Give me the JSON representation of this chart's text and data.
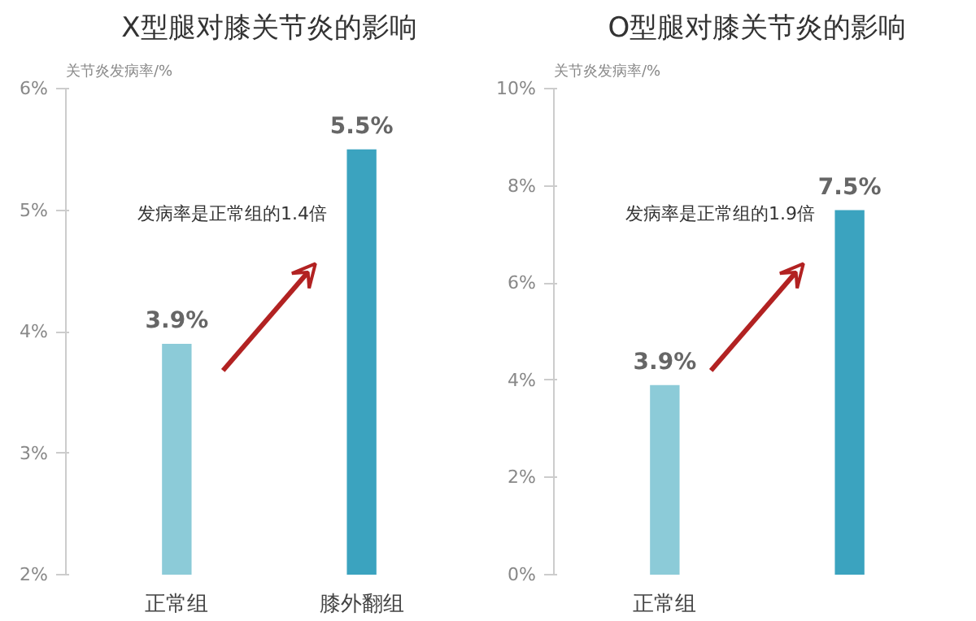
{
  "chart_data": [
    {
      "type": "bar",
      "title": "X型腿对膝关节炎的影响",
      "ylabel": "关节炎发病率/%",
      "categories": [
        "正常组",
        "膝外翻组"
      ],
      "values": [
        3.9,
        5.5
      ],
      "colors": [
        "#8ccbd8",
        "#3ba3bf"
      ],
      "value_labels": [
        "3.9%",
        "5.5%"
      ],
      "ylim": [
        2,
        6
      ],
      "yticks": [
        {
          "value": 2,
          "label": "2%"
        },
        {
          "value": 3,
          "label": "3%"
        },
        {
          "value": 4,
          "label": "4%"
        },
        {
          "value": 5,
          "label": "5%"
        },
        {
          "value": 6,
          "label": "6%"
        }
      ],
      "annotations": [
        "发病率是正常组的1.4倍"
      ]
    },
    {
      "type": "bar",
      "title": "O型腿对膝关节炎的影响",
      "ylabel": "关节炎发病率/%",
      "categories": [
        "正常组",
        null
      ],
      "values": [
        3.9,
        7.5
      ],
      "colors": [
        "#8ccbd8",
        "#3ba3bf"
      ],
      "value_labels": [
        "3.9%",
        "7.5%"
      ],
      "ylim": [
        0,
        10
      ],
      "yticks": [
        {
          "value": 0,
          "label": "0%"
        },
        {
          "value": 2,
          "label": "2%"
        },
        {
          "value": 4,
          "label": "4%"
        },
        {
          "value": 6,
          "label": "6%"
        },
        {
          "value": 8,
          "label": "8%"
        },
        {
          "value": 10,
          "label": "10%"
        }
      ],
      "annotations": [
        "发病率是正常组的1.9倍"
      ]
    }
  ]
}
